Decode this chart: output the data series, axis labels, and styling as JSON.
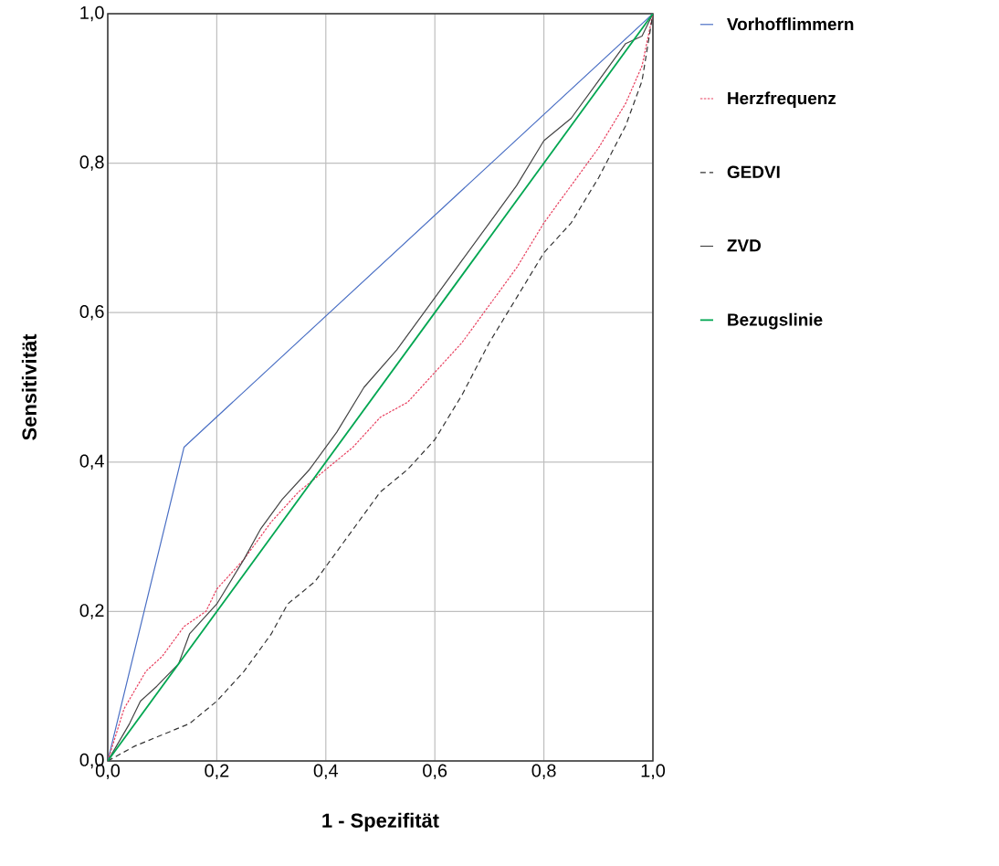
{
  "chart_data": {
    "type": "line",
    "xlabel": "1 - Spezifität",
    "ylabel": "Sensitivität",
    "xlim": [
      0,
      1
    ],
    "ylim": [
      0,
      1
    ],
    "xticks": [
      {
        "value": 0,
        "label": "0,0"
      },
      {
        "value": 0.2,
        "label": "0,2"
      },
      {
        "value": 0.4,
        "label": "0,4"
      },
      {
        "value": 0.6,
        "label": "0,6"
      },
      {
        "value": 0.8,
        "label": "0,8"
      },
      {
        "value": 1,
        "label": "1,0"
      }
    ],
    "yticks": [
      {
        "value": 0,
        "label": "0,0"
      },
      {
        "value": 0.2,
        "label": "0,2"
      },
      {
        "value": 0.4,
        "label": "0,4"
      },
      {
        "value": 0.6,
        "label": "0,6"
      },
      {
        "value": 0.8,
        "label": "0,8"
      },
      {
        "value": 1,
        "label": "1,0"
      }
    ],
    "grid": true,
    "legend": "right",
    "series": [
      {
        "name": "Vorhofflimmern",
        "color": "#4a6fc4",
        "line_style": "solid",
        "x": [
          0,
          0.14,
          1
        ],
        "values": [
          0,
          0.42,
          1
        ]
      },
      {
        "name": "Herzfrequenz",
        "color": "#e8405f",
        "line_style": "dotted",
        "x": [
          0,
          0.03,
          0.07,
          0.1,
          0.14,
          0.18,
          0.2,
          0.25,
          0.3,
          0.35,
          0.4,
          0.45,
          0.5,
          0.55,
          0.6,
          0.65,
          0.7,
          0.75,
          0.8,
          0.85,
          0.9,
          0.95,
          0.98,
          1
        ],
        "values": [
          0,
          0.07,
          0.12,
          0.14,
          0.18,
          0.2,
          0.23,
          0.27,
          0.32,
          0.36,
          0.39,
          0.42,
          0.46,
          0.48,
          0.52,
          0.56,
          0.61,
          0.66,
          0.72,
          0.77,
          0.82,
          0.88,
          0.93,
          1
        ]
      },
      {
        "name": "GEDVI",
        "color": "#333333",
        "line_style": "dashed",
        "x": [
          0,
          0.05,
          0.1,
          0.15,
          0.2,
          0.25,
          0.3,
          0.33,
          0.38,
          0.42,
          0.46,
          0.5,
          0.55,
          0.6,
          0.65,
          0.7,
          0.75,
          0.8,
          0.85,
          0.9,
          0.95,
          0.98,
          1
        ],
        "values": [
          0,
          0.02,
          0.035,
          0.05,
          0.08,
          0.12,
          0.17,
          0.21,
          0.24,
          0.28,
          0.32,
          0.36,
          0.39,
          0.43,
          0.49,
          0.56,
          0.62,
          0.68,
          0.72,
          0.78,
          0.85,
          0.91,
          1
        ]
      },
      {
        "name": "ZVD",
        "color": "#444444",
        "line_style": "solid",
        "x": [
          0,
          0.04,
          0.06,
          0.09,
          0.13,
          0.15,
          0.2,
          0.25,
          0.28,
          0.32,
          0.37,
          0.42,
          0.47,
          0.53,
          0.6,
          0.65,
          0.7,
          0.75,
          0.8,
          0.85,
          0.9,
          0.95,
          0.98,
          1
        ],
        "values": [
          0,
          0.05,
          0.08,
          0.1,
          0.13,
          0.17,
          0.21,
          0.27,
          0.31,
          0.35,
          0.39,
          0.44,
          0.5,
          0.55,
          0.62,
          0.67,
          0.72,
          0.77,
          0.83,
          0.86,
          0.91,
          0.96,
          0.97,
          1
        ]
      },
      {
        "name": "Bezugslinie",
        "color": "#00a651",
        "line_style": "solid",
        "x": [
          0,
          1
        ],
        "values": [
          0,
          1
        ]
      }
    ]
  }
}
